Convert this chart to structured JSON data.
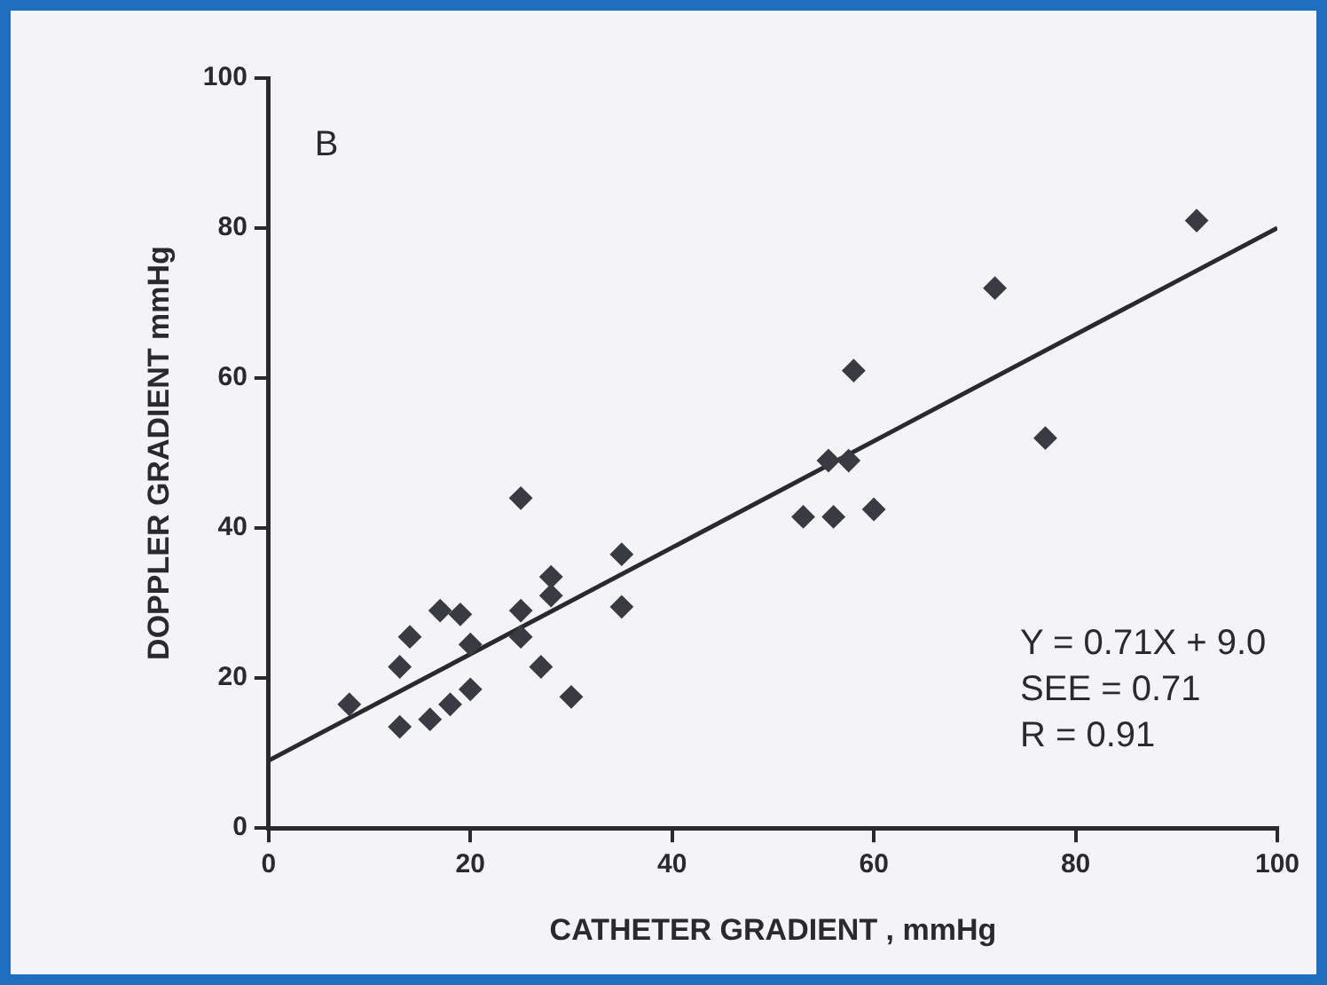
{
  "chart_data": {
    "type": "scatter",
    "xlabel": "CATHETER GRADIENT , mmHg",
    "ylabel": "DOPPLER GRADIENT mmHg",
    "annotations": [
      "B",
      "Y = 0.71X + 9.0",
      "SEE = 0.71",
      "R = 0.91"
    ],
    "xlim": [
      0,
      100
    ],
    "xticks": [
      0,
      20,
      40,
      60,
      80,
      100
    ],
    "ylim": [
      0,
      100
    ],
    "yticks": [
      0,
      20,
      40,
      60,
      80,
      100
    ],
    "grid": false,
    "legend": false,
    "marker": "diamond",
    "series": [
      {
        "type": "scatter",
        "color": "#3a3a42",
        "x": [
          8,
          13,
          14,
          13,
          16,
          18,
          20,
          17,
          19,
          20,
          25,
          25,
          25,
          27,
          28,
          28,
          30,
          35,
          35,
          72,
          58,
          77,
          55.5,
          57.5,
          53,
          56,
          60,
          92
        ],
        "values": [
          16.5,
          21.5,
          25.5,
          13.5,
          14.5,
          16.5,
          18.5,
          29,
          28.5,
          24.5,
          29,
          25.5,
          44,
          21.5,
          33.5,
          31,
          17.5,
          36.5,
          29.5,
          72,
          61,
          52,
          49,
          49,
          41.5,
          41.5,
          42.5,
          81
        ]
      },
      {
        "type": "line",
        "color": "#2a2a2e",
        "line_style": "solid",
        "marker": "none",
        "x": [
          0,
          100
        ],
        "values": [
          9,
          80
        ]
      }
    ]
  }
}
